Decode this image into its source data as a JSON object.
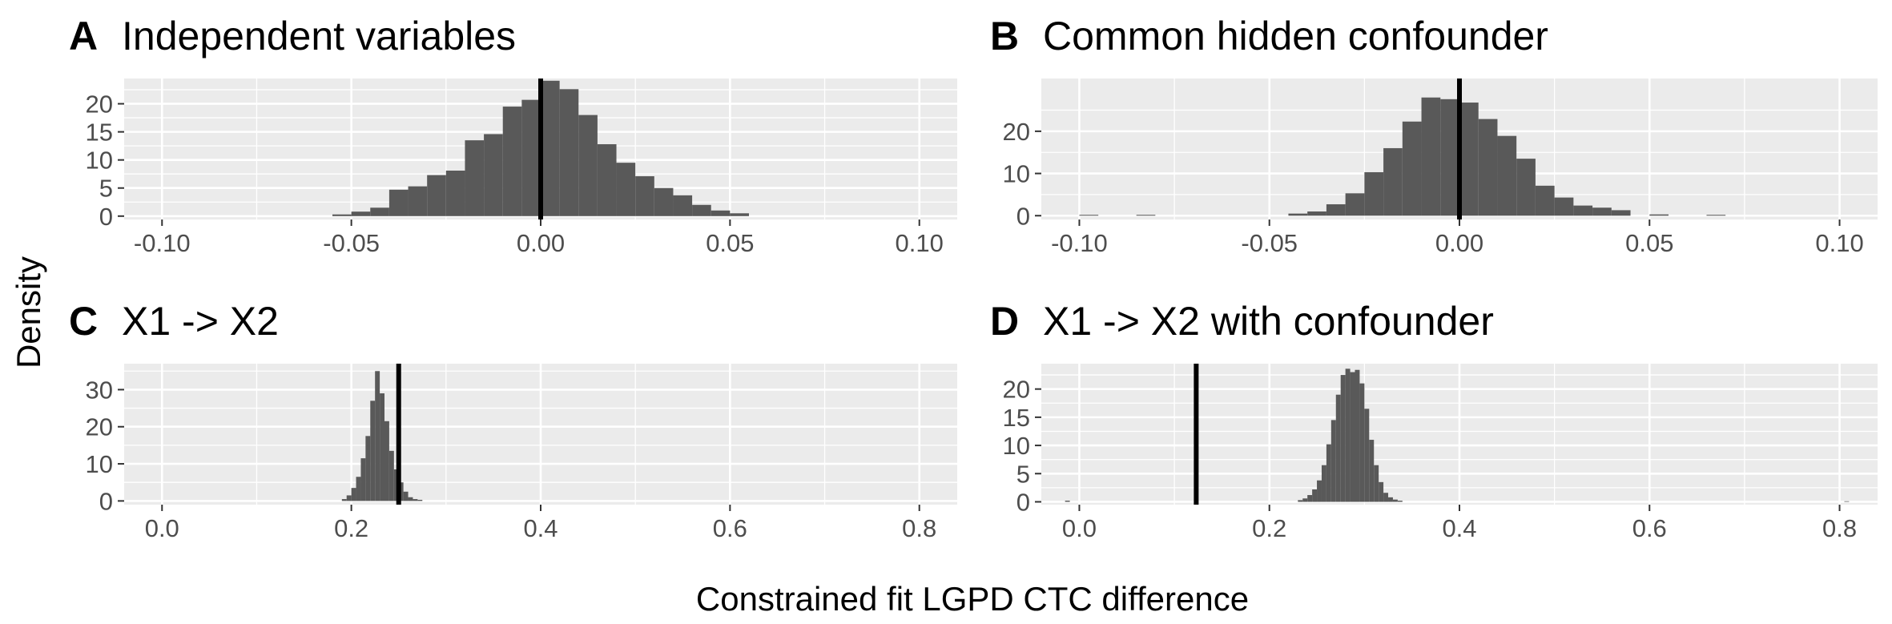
{
  "figure": {
    "ylabel": "Density",
    "xlabel": "Constrained fit LGPD CTC difference"
  },
  "colors": {
    "panel_background": "#ebebeb",
    "grid_major": "#ffffff",
    "bar_fill": "#595959",
    "reference_line": "#000000",
    "tick_text": "#4d4d4d"
  },
  "chart_data": [
    {
      "type": "bar",
      "tag": "A",
      "title": "Independent variables",
      "xlim": [
        -0.11,
        0.11
      ],
      "ylim": [
        -0.6,
        24.5
      ],
      "xticks": [
        -0.1,
        -0.05,
        0.0,
        0.05,
        0.1
      ],
      "xtick_labels": [
        "-0.10",
        "-0.05",
        "0.00",
        "0.05",
        "0.10"
      ],
      "yticks": [
        0,
        5,
        10,
        15,
        20
      ],
      "ytick_labels": [
        "0",
        "5",
        "10",
        "15",
        "20"
      ],
      "grid": true,
      "bin_width": 0.005,
      "bins_x": [
        -0.0525,
        -0.0475,
        -0.0425,
        -0.0375,
        -0.0325,
        -0.0275,
        -0.0225,
        -0.0175,
        -0.0125,
        -0.0075,
        -0.0025,
        0.0025,
        0.0075,
        0.0125,
        0.0175,
        0.0225,
        0.0275,
        0.0325,
        0.0375,
        0.0425,
        0.0475,
        0.0525
      ],
      "values": [
        0.3,
        0.8,
        1.5,
        4.7,
        5.3,
        7.3,
        8.1,
        13.5,
        14.6,
        19.5,
        20.7,
        24.1,
        22.6,
        18.0,
        12.8,
        9.5,
        7.1,
        5.0,
        3.7,
        2.0,
        1.0,
        0.5
      ],
      "reference_x": 0.0
    },
    {
      "type": "bar",
      "tag": "B",
      "title": "Common hidden confounder",
      "xlim": [
        -0.11,
        0.11
      ],
      "ylim": [
        -0.9,
        32.5
      ],
      "xticks": [
        -0.1,
        -0.05,
        0.0,
        0.05,
        0.1
      ],
      "xtick_labels": [
        "-0.10",
        "-0.05",
        "0.00",
        "0.05",
        "0.10"
      ],
      "yticks": [
        0,
        10,
        20
      ],
      "ytick_labels": [
        "0",
        "10",
        "20"
      ],
      "grid": true,
      "bin_width": 0.005,
      "bins_x": [
        -0.0975,
        -0.0825,
        -0.0425,
        -0.0375,
        -0.0325,
        -0.0275,
        -0.0225,
        -0.0175,
        -0.0125,
        -0.0075,
        -0.0025,
        0.0025,
        0.0075,
        0.0125,
        0.0175,
        0.0225,
        0.0275,
        0.0325,
        0.0375,
        0.0425,
        0.0525,
        0.0675
      ],
      "values": [
        0.2,
        0.2,
        0.5,
        1.0,
        2.7,
        5.3,
        10.3,
        16.0,
        22.3,
        28.0,
        27.6,
        26.8,
        22.9,
        18.9,
        13.5,
        7.1,
        4.3,
        2.4,
        1.9,
        1.3,
        0.3,
        0.2
      ],
      "reference_x": 0.0
    },
    {
      "type": "bar",
      "tag": "C",
      "title": "X1 -> X2",
      "xlim": [
        -0.04,
        0.84
      ],
      "ylim": [
        -1.0,
        37.0
      ],
      "xticks": [
        0.0,
        0.2,
        0.4,
        0.6,
        0.8
      ],
      "xtick_labels": [
        "0.0",
        "0.2",
        "0.4",
        "0.6",
        "0.8"
      ],
      "yticks": [
        0,
        10,
        20,
        30
      ],
      "ytick_labels": [
        "0",
        "10",
        "20",
        "30"
      ],
      "grid": true,
      "bin_width": 0.005,
      "bins_x": [
        0.1925,
        0.1975,
        0.2025,
        0.2075,
        0.2125,
        0.2175,
        0.2225,
        0.2275,
        0.2325,
        0.2375,
        0.2425,
        0.2475,
        0.2525,
        0.2575,
        0.2625,
        0.2675,
        0.2725
      ],
      "values": [
        0.5,
        1.5,
        3.5,
        6.5,
        11.5,
        17.5,
        27.0,
        35.0,
        29.0,
        21.5,
        13.5,
        8.5,
        5.0,
        2.5,
        1.0,
        0.5,
        0.3
      ],
      "reference_x": 0.25
    },
    {
      "type": "bar",
      "tag": "D",
      "title": "X1 -> X2 with confounder",
      "xlim": [
        -0.04,
        0.84
      ],
      "ylim": [
        -0.5,
        24.5
      ],
      "xticks": [
        0.0,
        0.2,
        0.4,
        0.6,
        0.8
      ],
      "xtick_labels": [
        "0.0",
        "0.2",
        "0.4",
        "0.6",
        "0.8"
      ],
      "yticks": [
        0,
        5,
        10,
        15,
        20
      ],
      "ytick_labels": [
        "0",
        "5",
        "10",
        "15",
        "20"
      ],
      "grid": true,
      "bin_width": 0.005,
      "bins_x": [
        -0.0125,
        0.2325,
        0.2375,
        0.2425,
        0.2475,
        0.2525,
        0.2575,
        0.2625,
        0.2675,
        0.2725,
        0.2775,
        0.2825,
        0.2875,
        0.2925,
        0.2975,
        0.3025,
        0.3075,
        0.3125,
        0.3175,
        0.3225,
        0.3275,
        0.3325,
        0.3375,
        0.8075
      ],
      "values": [
        0.2,
        0.3,
        0.6,
        1.2,
        2.2,
        3.8,
        6.5,
        10.2,
        14.5,
        19.0,
        22.5,
        23.6,
        23.0,
        23.4,
        21.0,
        16.5,
        11.0,
        6.5,
        3.5,
        1.6,
        0.8,
        0.4,
        0.2,
        0.1
      ],
      "reference_x": 0.123
    }
  ]
}
